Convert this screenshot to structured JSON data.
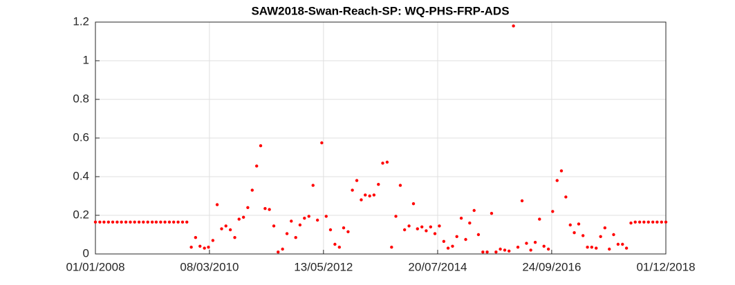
{
  "chart_data": {
    "type": "scatter",
    "title": "SAW2018-Swan-Reach-SP: WQ-PHS-FRP-ADS",
    "color": "#ff0000",
    "grid": true,
    "xlim": [
      "2008-01-01",
      "2018-12-01"
    ],
    "ylim": [
      0,
      1.2
    ],
    "xticks": [
      {
        "value": "2008-01-01",
        "label": "01/01/2008"
      },
      {
        "value": "2010-03-08",
        "label": "08/03/2010"
      },
      {
        "value": "2012-05-13",
        "label": "13/05/2012"
      },
      {
        "value": "2014-07-20",
        "label": "20/07/2014"
      },
      {
        "value": "2016-09-24",
        "label": "24/09/2016"
      },
      {
        "value": "2018-12-01",
        "label": "01/12/2018"
      }
    ],
    "yticks": [
      0,
      0.2,
      0.4,
      0.6,
      0.8,
      1,
      1.2
    ],
    "x": [
      "2008-01-01",
      "2008-02-01",
      "2008-03-01",
      "2008-04-01",
      "2008-05-01",
      "2008-06-01",
      "2008-07-01",
      "2008-08-01",
      "2008-09-01",
      "2008-10-01",
      "2008-11-01",
      "2008-12-01",
      "2009-01-01",
      "2009-02-01",
      "2009-03-01",
      "2009-04-01",
      "2009-05-01",
      "2009-06-01",
      "2009-07-01",
      "2009-08-01",
      "2009-09-01",
      "2009-10-01",
      "2009-11-01",
      "2009-12-01",
      "2010-01-01",
      "2010-02-01",
      "2010-03-01",
      "2010-04-01",
      "2010-05-01",
      "2010-06-01",
      "2010-07-01",
      "2010-08-01",
      "2010-09-01",
      "2010-10-01",
      "2010-11-01",
      "2010-12-01",
      "2011-01-01",
      "2011-02-01",
      "2011-03-01",
      "2011-04-01",
      "2011-05-01",
      "2011-06-01",
      "2011-07-01",
      "2011-08-01",
      "2011-09-01",
      "2011-10-01",
      "2011-11-01",
      "2011-12-01",
      "2012-01-01",
      "2012-02-01",
      "2012-03-01",
      "2012-04-01",
      "2012-05-01",
      "2012-06-01",
      "2012-07-01",
      "2012-08-01",
      "2012-09-01",
      "2012-10-01",
      "2012-11-01",
      "2012-12-01",
      "2013-01-01",
      "2013-02-01",
      "2013-03-01",
      "2013-04-01",
      "2013-05-01",
      "2013-06-01",
      "2013-07-01",
      "2013-08-01",
      "2013-09-01",
      "2013-10-01",
      "2013-11-01",
      "2013-12-01",
      "2014-01-01",
      "2014-02-01",
      "2014-03-01",
      "2014-04-01",
      "2014-05-01",
      "2014-06-01",
      "2014-07-01",
      "2014-08-01",
      "2014-09-01",
      "2014-10-01",
      "2014-11-01",
      "2014-12-01",
      "2015-01-01",
      "2015-02-01",
      "2015-03-01",
      "2015-04-01",
      "2015-05-01",
      "2015-06-01",
      "2015-07-01",
      "2015-08-01",
      "2015-09-01",
      "2015-10-01",
      "2015-11-01",
      "2015-12-01",
      "2016-01-01",
      "2016-02-01",
      "2016-03-01",
      "2016-04-01",
      "2016-05-01",
      "2016-06-01",
      "2016-07-01",
      "2016-08-01",
      "2016-09-01",
      "2016-10-01",
      "2016-11-01",
      "2016-12-01",
      "2017-01-01",
      "2017-02-01",
      "2017-03-01",
      "2017-04-01",
      "2017-05-01",
      "2017-06-01",
      "2017-07-01",
      "2017-08-01",
      "2017-09-01",
      "2017-10-01",
      "2017-11-01",
      "2017-12-01",
      "2018-01-01",
      "2018-02-01",
      "2018-03-01",
      "2018-04-01",
      "2018-05-01",
      "2018-06-01",
      "2018-07-01",
      "2018-08-01",
      "2018-09-01",
      "2018-10-01",
      "2018-11-01",
      "2018-12-01"
    ],
    "values": [
      0.165,
      0.165,
      0.165,
      0.165,
      0.165,
      0.165,
      0.165,
      0.165,
      0.165,
      0.165,
      0.165,
      0.165,
      0.165,
      0.165,
      0.165,
      0.165,
      0.165,
      0.165,
      0.165,
      0.165,
      0.165,
      0.165,
      0.035,
      0.085,
      0.04,
      0.03,
      0.035,
      0.07,
      0.255,
      0.13,
      0.145,
      0.125,
      0.085,
      0.18,
      0.19,
      0.24,
      0.33,
      0.455,
      0.56,
      0.235,
      0.23,
      0.145,
      0.01,
      0.025,
      0.105,
      0.17,
      0.085,
      0.15,
      0.185,
      0.195,
      0.355,
      0.175,
      0.575,
      0.195,
      0.125,
      0.05,
      0.035,
      0.135,
      0.115,
      0.33,
      0.38,
      0.28,
      0.305,
      0.3,
      0.305,
      0.36,
      0.47,
      0.475,
      0.035,
      0.195,
      0.355,
      0.125,
      0.145,
      0.26,
      0.13,
      0.14,
      0.12,
      0.14,
      0.105,
      0.145,
      0.065,
      0.03,
      0.04,
      0.09,
      0.185,
      0.075,
      0.16,
      0.225,
      0.1,
      0.01,
      0.01,
      0.21,
      0.01,
      0.025,
      0.02,
      0.015,
      1.18,
      0.035,
      0.275,
      0.055,
      0.02,
      0.06,
      0.18,
      0.04,
      0.025,
      0.22,
      0.38,
      0.43,
      0.295,
      0.15,
      0.11,
      0.155,
      0.095,
      0.035,
      0.035,
      0.03,
      0.09,
      0.135,
      0.025,
      0.1,
      0.05,
      0.05,
      0.03,
      0.16,
      0.165,
      0.165,
      0.165,
      0.165,
      0.165,
      0.165,
      0.165,
      0.165
    ]
  }
}
